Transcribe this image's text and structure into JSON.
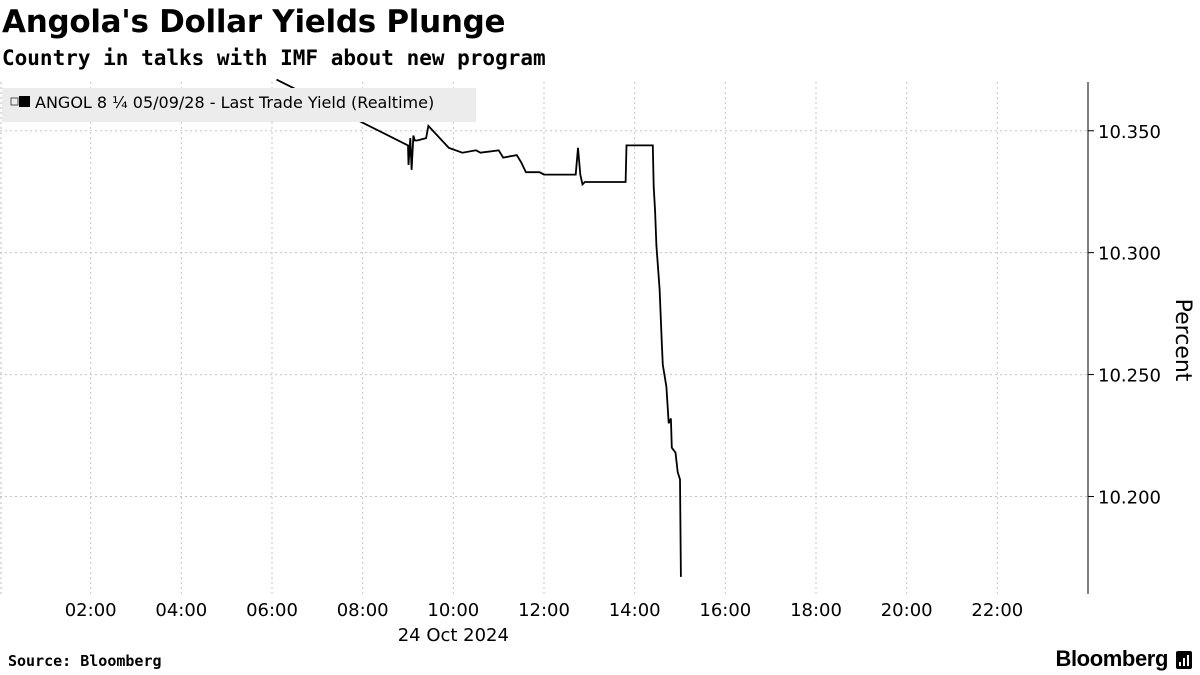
{
  "header": {
    "title": "Angola's Dollar Yields Plunge",
    "subtitle": "Country in talks with IMF about new program"
  },
  "footer": {
    "source": "Source: Bloomberg",
    "brand": "Bloomberg",
    "brand_icon": "bloomberg-bars-icon"
  },
  "chart_data": {
    "type": "line",
    "title": "Angola's Dollar Yields Plunge",
    "subtitle": "Country in talks with IMF about new program",
    "xlabel": "24 Oct 2024",
    "ylabel": "Percent",
    "x_ticks": [
      "02:00",
      "04:00",
      "06:00",
      "08:00",
      "10:00",
      "12:00",
      "14:00",
      "16:00",
      "18:00",
      "20:00",
      "22:00"
    ],
    "y_ticks": [
      10.2,
      10.25,
      10.3,
      10.35
    ],
    "y_tick_labels": [
      "10.200",
      "10.250",
      "10.300",
      "10.350"
    ],
    "ylim": [
      10.16,
      10.37
    ],
    "xlim_hours": [
      0,
      24
    ],
    "grid": true,
    "y_axis_side": "right",
    "legend": {
      "placement": "top-left",
      "entries": [
        "ANGOL 8 ¼ 05/09/28 - Last Trade Yield (Realtime)"
      ]
    },
    "line_color": "#000000",
    "series": [
      {
        "name": "ANGOL 8 ¼ 05/09/28 - Last Trade Yield (Realtime)",
        "x_hours": [
          6.1,
          9.0,
          9.01,
          9.05,
          9.08,
          9.12,
          9.15,
          9.2,
          9.4,
          9.45,
          9.8,
          9.9,
          10.2,
          10.5,
          10.6,
          11.0,
          11.1,
          11.4,
          11.5,
          11.6,
          11.9,
          12.0,
          12.3,
          12.7,
          12.75,
          12.8,
          12.85,
          12.9,
          13.3,
          13.8,
          13.82,
          14.2,
          14.4,
          14.42,
          14.45,
          14.48,
          14.55,
          14.6,
          14.62,
          14.7,
          14.75,
          14.8,
          14.82,
          14.9,
          14.95,
          15.0,
          15.02
        ],
        "values": [
          10.371,
          10.344,
          10.336,
          10.347,
          10.334,
          10.348,
          10.346,
          10.346,
          10.347,
          10.352,
          10.345,
          10.343,
          10.341,
          10.342,
          10.341,
          10.342,
          10.339,
          10.34,
          10.337,
          10.333,
          10.333,
          10.332,
          10.332,
          10.332,
          10.343,
          10.332,
          10.328,
          10.329,
          10.329,
          10.329,
          10.344,
          10.344,
          10.344,
          10.327,
          10.317,
          10.303,
          10.285,
          10.262,
          10.254,
          10.245,
          10.23,
          10.232,
          10.22,
          10.218,
          10.21,
          10.207,
          10.167
        ]
      }
    ]
  }
}
